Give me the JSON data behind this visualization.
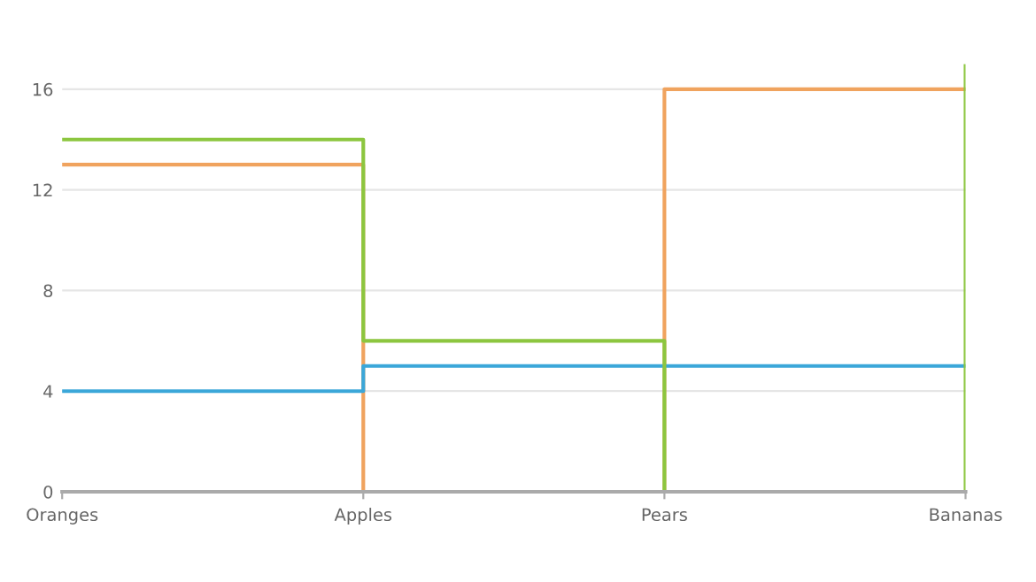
{
  "chart_data": {
    "type": "step",
    "categories": [
      "Oranges",
      "Apples",
      "Pears",
      "Bananas"
    ],
    "series": [
      {
        "color": "#f0a35e",
        "values": [
          13,
          0,
          16,
          16
        ]
      },
      {
        "color": "#3ba7d9",
        "values": [
          4,
          5,
          5,
          5
        ]
      },
      {
        "color": "#8cc63f",
        "values": [
          14,
          6,
          0,
          17
        ]
      }
    ],
    "ylim": [
      0,
      17
    ],
    "yticks": [
      0,
      4,
      8,
      12,
      16
    ],
    "grid": "y",
    "legend": false
  }
}
